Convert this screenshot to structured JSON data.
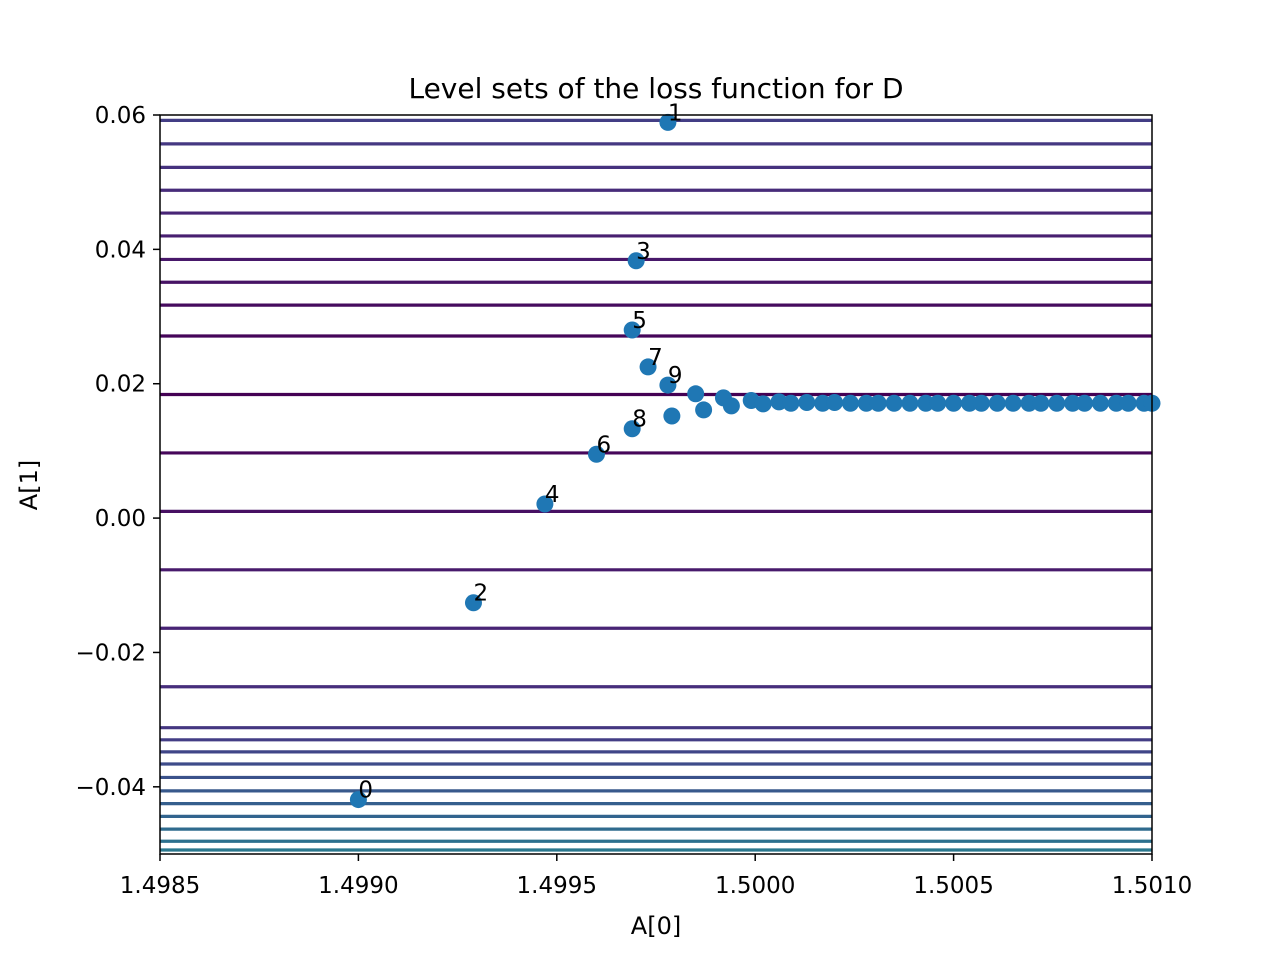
{
  "chart_data": {
    "type": "scatter",
    "title": "Level sets of the loss function for D",
    "xlabel": "A[0]",
    "ylabel": "A[1]",
    "xlim": [
      1.4985,
      1.501
    ],
    "ylim": [
      -0.05,
      0.06
    ],
    "x_ticks": [
      1.4985,
      1.499,
      1.4995,
      1.5,
      1.5005,
      1.501
    ],
    "x_tick_labels": [
      "1.4985",
      "1.4990",
      "1.4995",
      "1.5000",
      "1.5005",
      "1.5010"
    ],
    "y_ticks": [
      -0.04,
      -0.02,
      0.0,
      0.02,
      0.04,
      0.06
    ],
    "y_tick_labels": [
      "−0.04",
      "−0.02",
      "0.00",
      "0.02",
      "0.04",
      "0.06"
    ],
    "grid": false,
    "marker_color": "#1f77b4",
    "contour_levels": [
      {
        "y": 0.0592,
        "color": "#433e85"
      },
      {
        "y": 0.0557,
        "color": "#453882"
      },
      {
        "y": 0.0522,
        "color": "#46327e"
      },
      {
        "y": 0.0488,
        "color": "#472c7a"
      },
      {
        "y": 0.0454,
        "color": "#482576"
      },
      {
        "y": 0.042,
        "color": "#481f70"
      },
      {
        "y": 0.0385,
        "color": "#48186a"
      },
      {
        "y": 0.0351,
        "color": "#471365"
      },
      {
        "y": 0.0317,
        "color": "#460b5e"
      },
      {
        "y": 0.0271,
        "color": "#450559"
      },
      {
        "y": 0.0184,
        "color": "#440154"
      },
      {
        "y": 0.0097,
        "color": "#46075a"
      },
      {
        "y": 0.001,
        "color": "#471063"
      },
      {
        "y": -0.0077,
        "color": "#481a6c"
      },
      {
        "y": -0.0164,
        "color": "#482475"
      },
      {
        "y": -0.0251,
        "color": "#472e7c"
      },
      {
        "y": -0.0312,
        "color": "#453781"
      },
      {
        "y": -0.033,
        "color": "#433e85"
      },
      {
        "y": -0.0348,
        "color": "#404688"
      },
      {
        "y": -0.0366,
        "color": "#3e4c8a"
      },
      {
        "y": -0.0386,
        "color": "#3b528b"
      },
      {
        "y": -0.0406,
        "color": "#38598c"
      },
      {
        "y": -0.0425,
        "color": "#355f8d"
      },
      {
        "y": -0.0444,
        "color": "#32648e"
      },
      {
        "y": -0.0463,
        "color": "#2f6b8e"
      },
      {
        "y": -0.0481,
        "color": "#2c718e"
      },
      {
        "y": -0.0494,
        "color": "#2a788e"
      }
    ],
    "points": [
      {
        "x": 1.499,
        "y": -0.0419,
        "label": "0"
      },
      {
        "x": 1.49978,
        "y": 0.0589,
        "label": "1"
      },
      {
        "x": 1.49929,
        "y": -0.0126,
        "label": "2"
      },
      {
        "x": 1.4997,
        "y": 0.0383,
        "label": "3"
      },
      {
        "x": 1.49947,
        "y": 0.0021,
        "label": "4"
      },
      {
        "x": 1.49969,
        "y": 0.028,
        "label": "5"
      },
      {
        "x": 1.4996,
        "y": 0.0095,
        "label": "6"
      },
      {
        "x": 1.49973,
        "y": 0.0225,
        "label": "7"
      },
      {
        "x": 1.49969,
        "y": 0.0133,
        "label": "8"
      },
      {
        "x": 1.49978,
        "y": 0.0198,
        "label": "9"
      },
      {
        "x": 1.49979,
        "y": 0.0152,
        "label": ""
      },
      {
        "x": 1.49985,
        "y": 0.0185,
        "label": ""
      },
      {
        "x": 1.49987,
        "y": 0.0161,
        "label": ""
      },
      {
        "x": 1.49992,
        "y": 0.0179,
        "label": ""
      },
      {
        "x": 1.49994,
        "y": 0.0167,
        "label": ""
      },
      {
        "x": 1.49999,
        "y": 0.0175,
        "label": ""
      },
      {
        "x": 1.50002,
        "y": 0.017,
        "label": ""
      },
      {
        "x": 1.50006,
        "y": 0.0173,
        "label": ""
      },
      {
        "x": 1.50009,
        "y": 0.0171,
        "label": ""
      },
      {
        "x": 1.50013,
        "y": 0.0172,
        "label": ""
      },
      {
        "x": 1.50017,
        "y": 0.0171,
        "label": ""
      },
      {
        "x": 1.5002,
        "y": 0.0172,
        "label": ""
      },
      {
        "x": 1.50024,
        "y": 0.0171,
        "label": ""
      },
      {
        "x": 1.50028,
        "y": 0.0171,
        "label": ""
      },
      {
        "x": 1.50031,
        "y": 0.0171,
        "label": ""
      },
      {
        "x": 1.50035,
        "y": 0.0171,
        "label": ""
      },
      {
        "x": 1.50039,
        "y": 0.0171,
        "label": ""
      },
      {
        "x": 1.50043,
        "y": 0.0171,
        "label": ""
      },
      {
        "x": 1.50046,
        "y": 0.0171,
        "label": ""
      },
      {
        "x": 1.5005,
        "y": 0.0171,
        "label": ""
      },
      {
        "x": 1.50054,
        "y": 0.0171,
        "label": ""
      },
      {
        "x": 1.50057,
        "y": 0.0171,
        "label": ""
      },
      {
        "x": 1.50061,
        "y": 0.0171,
        "label": ""
      },
      {
        "x": 1.50065,
        "y": 0.0171,
        "label": ""
      },
      {
        "x": 1.50069,
        "y": 0.0171,
        "label": ""
      },
      {
        "x": 1.50072,
        "y": 0.0171,
        "label": ""
      },
      {
        "x": 1.50076,
        "y": 0.0171,
        "label": ""
      },
      {
        "x": 1.5008,
        "y": 0.0171,
        "label": ""
      },
      {
        "x": 1.50083,
        "y": 0.0171,
        "label": ""
      },
      {
        "x": 1.50087,
        "y": 0.0171,
        "label": ""
      },
      {
        "x": 1.50091,
        "y": 0.0171,
        "label": ""
      },
      {
        "x": 1.50094,
        "y": 0.0171,
        "label": ""
      },
      {
        "x": 1.50098,
        "y": 0.0171,
        "label": ""
      },
      {
        "x": 1.501,
        "y": 0.0171,
        "label": ""
      }
    ]
  }
}
